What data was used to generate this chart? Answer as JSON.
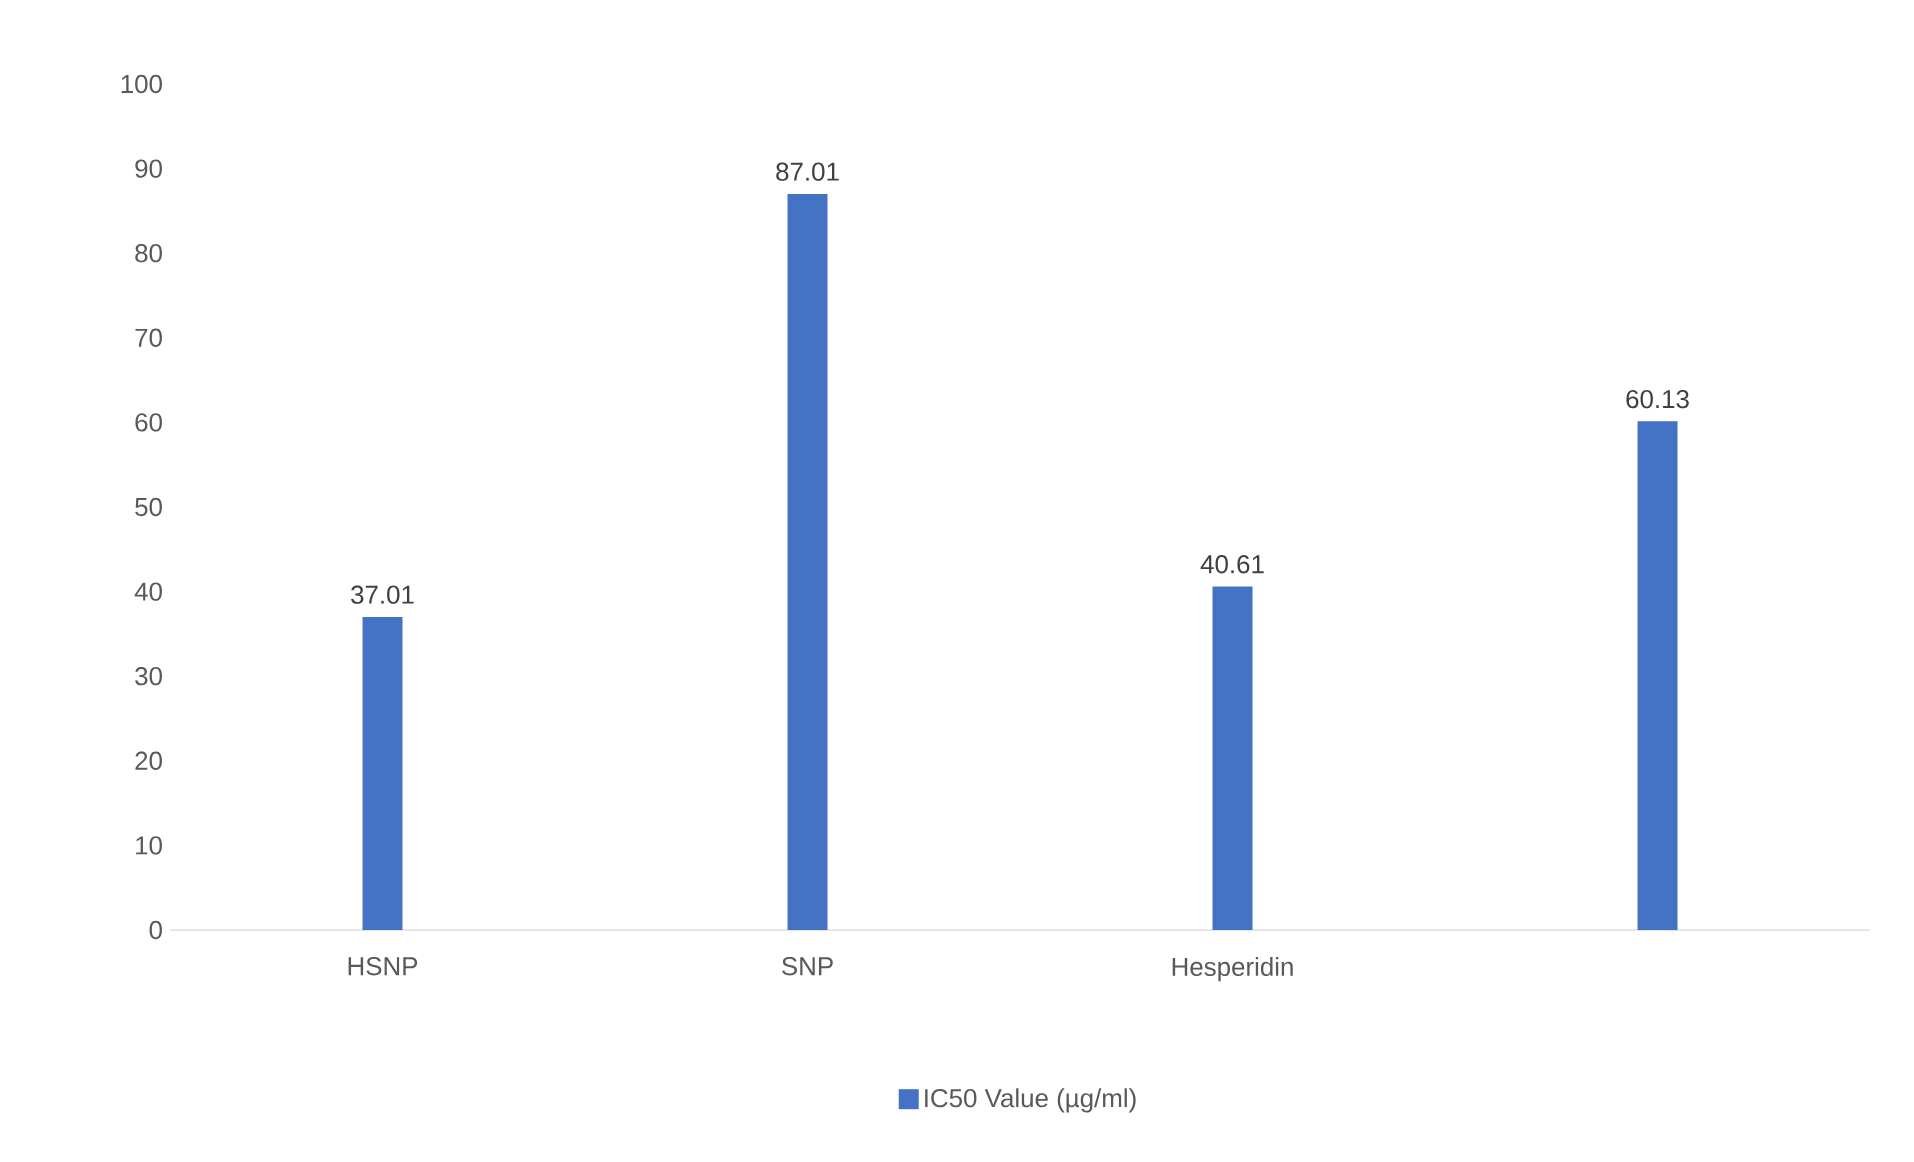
{
  "chart_data": {
    "type": "bar",
    "categories": [
      "HSNP",
      "SNP",
      "Hesperidin",
      null
    ],
    "series": [
      {
        "name": "IC50 Value (µg/ml)",
        "color": "#4472c4",
        "values": [
          37.01,
          87.01,
          40.61,
          60.13
        ]
      }
    ],
    "ylim": [
      0,
      100
    ],
    "yticks": [
      0,
      10,
      20,
      30,
      40,
      50,
      60,
      70,
      80,
      90,
      100
    ],
    "data_labels": true,
    "legend": "bottom"
  }
}
